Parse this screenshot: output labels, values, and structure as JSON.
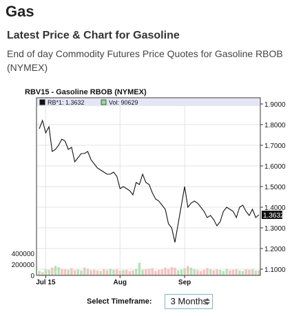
{
  "page": {
    "title": "Gas",
    "heading": "Latest Price & Chart for Gasoline",
    "subtitle": "End of day Commodity Futures Price Quotes for Gasoline RBOB (NYMEX)"
  },
  "chart_data": {
    "type": "line",
    "title": "RBV15 - Gasoline RBOB (NYMEX)",
    "legend": {
      "price_label": "RB*1: 1.3632",
      "volume_label": "Vol: 90629",
      "placement": "top"
    },
    "price_ylim": [
      1.07,
      1.93
    ],
    "price_ticks": [
      "1.9000",
      "1.8000",
      "1.7000",
      "1.6000",
      "1.5000",
      "1.4000",
      "1.3000",
      "1.2000",
      "1.1000"
    ],
    "last_price": "1.3632",
    "volume_ylim": [
      0,
      400000
    ],
    "volume_ticks": [
      "400000",
      "200000",
      "0"
    ],
    "x_ticks": [
      "Jul 15",
      "Aug",
      "Sep"
    ],
    "x_tick_index": [
      2,
      25,
      45
    ],
    "grid": true,
    "series": [
      {
        "name": "RB*1",
        "color": "#111111",
        "values": [
          1.78,
          1.82,
          1.76,
          1.79,
          1.67,
          1.68,
          1.7,
          1.73,
          1.72,
          1.68,
          1.69,
          1.62,
          1.64,
          1.66,
          1.66,
          1.67,
          1.63,
          1.61,
          1.59,
          1.58,
          1.57,
          1.56,
          1.56,
          1.57,
          1.55,
          1.49,
          1.5,
          1.49,
          1.48,
          1.46,
          1.52,
          1.51,
          1.56,
          1.52,
          1.51,
          1.47,
          1.44,
          1.43,
          1.41,
          1.39,
          1.32,
          1.3,
          1.23,
          1.32,
          1.41,
          1.5,
          1.4,
          1.42,
          1.43,
          1.42,
          1.4,
          1.38,
          1.35,
          1.36,
          1.34,
          1.31,
          1.33,
          1.38,
          1.4,
          1.39,
          1.38,
          1.35,
          1.4,
          1.41,
          1.38,
          1.36,
          1.39,
          1.35,
          1.3632
        ]
      },
      {
        "name": "Vol",
        "values": [
          82000,
          60000,
          105000,
          98000,
          140000,
          170000,
          150000,
          120000,
          110000,
          100000,
          130000,
          95000,
          105000,
          88000,
          140000,
          120000,
          95000,
          100000,
          90000,
          80000,
          110000,
          95000,
          120000,
          100000,
          110000,
          85000,
          95000,
          100000,
          80000,
          90000,
          120000,
          230000,
          100000,
          110000,
          120000,
          130000,
          80000,
          100000,
          110000,
          140000,
          120000,
          150000,
          140000,
          90000,
          105000,
          130000,
          170000,
          140000,
          110000,
          95000,
          80000,
          100000,
          130000,
          110000,
          95000,
          110000,
          100000,
          80000,
          120000,
          95000,
          100000,
          110000,
          90000,
          80000,
          105000,
          100000,
          110000,
          90000,
          90629
        ],
        "colors": [
          "#b8e2b8",
          "#f6c2c2",
          "#b8e2b8",
          "#b8e2b8",
          "#f6c2c2",
          "#b8e2b8",
          "#b8e2b8",
          "#f6c2c2",
          "#f6c2c2",
          "#b8e2b8",
          "#f6c2c2",
          "#f6c2c2",
          "#b8e2b8",
          "#b8e2b8",
          "#f6c2c2",
          "#b8e2b8",
          "#f6c2c2",
          "#f6c2c2",
          "#f6c2c2",
          "#b8e2b8",
          "#f6c2c2",
          "#f6c2c2",
          "#b8e2b8",
          "#b8e2b8",
          "#f6c2c2",
          "#f6c2c2",
          "#b8e2b8",
          "#f6c2c2",
          "#f6c2c2",
          "#f6c2c2",
          "#b8e2b8",
          "#b8e2b8",
          "#b8e2b8",
          "#f6c2c2",
          "#f6c2c2",
          "#f6c2c2",
          "#f6c2c2",
          "#f6c2c2",
          "#f6c2c2",
          "#f6c2c2",
          "#f6c2c2",
          "#f6c2c2",
          "#f6c2c2",
          "#b8e2b8",
          "#b8e2b8",
          "#b8e2b8",
          "#f6c2c2",
          "#b8e2b8",
          "#b8e2b8",
          "#f6c2c2",
          "#f6c2c2",
          "#f6c2c2",
          "#f6c2c2",
          "#b8e2b8",
          "#f6c2c2",
          "#f6c2c2",
          "#b8e2b8",
          "#b8e2b8",
          "#b8e2b8",
          "#f6c2c2",
          "#f6c2c2",
          "#f6c2c2",
          "#b8e2b8",
          "#b8e2b8",
          "#f6c2c2",
          "#f6c2c2",
          "#b8e2b8",
          "#f6c2c2",
          "#b8e2b8"
        ]
      }
    ]
  },
  "timeframe": {
    "label": "Select Timeframe:",
    "selected": "3 Months"
  }
}
